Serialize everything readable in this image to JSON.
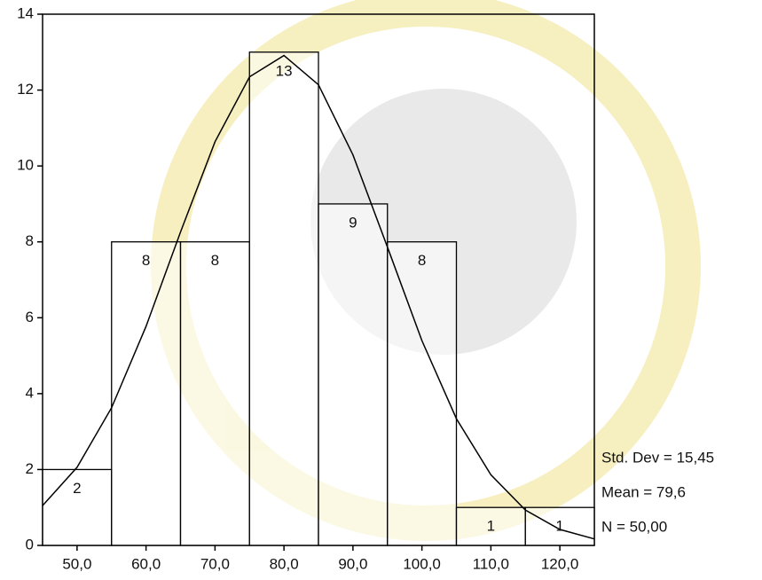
{
  "chart_data": {
    "type": "histogram",
    "bins": [
      45,
      55,
      65,
      75,
      85,
      95,
      105,
      115,
      125
    ],
    "values": [
      2,
      8,
      8,
      13,
      9,
      8,
      1,
      1
    ],
    "color": "#ffffff",
    "xlim": [
      45,
      125
    ],
    "xticks": [
      {
        "value": 50,
        "label": "50,0"
      },
      {
        "value": 60,
        "label": "60,0"
      },
      {
        "value": 70,
        "label": "70,0"
      },
      {
        "value": 80,
        "label": "80,0"
      },
      {
        "value": 90,
        "label": "90,0"
      },
      {
        "value": 100,
        "label": "100,0"
      },
      {
        "value": 110,
        "label": "110,0"
      },
      {
        "value": 120,
        "label": "120,0"
      }
    ],
    "ylim": [
      0,
      14
    ],
    "yticks": [
      0,
      2,
      4,
      6,
      8,
      10,
      12,
      14
    ],
    "curve": {
      "x": [
        45,
        50,
        55,
        60,
        65,
        70,
        75,
        80,
        85,
        90,
        95,
        100,
        105,
        110,
        115,
        120,
        125
      ],
      "y": [
        1.05,
        2.06,
        3.63,
        5.77,
        8.26,
        10.64,
        12.35,
        12.91,
        12.14,
        10.29,
        7.86,
        5.4,
        3.34,
        1.86,
        0.93,
        0.42,
        0.17
      ]
    },
    "stats": [
      "Std. Dev = 15,45",
      "Mean = 79,6",
      "N = 50,00"
    ]
  }
}
